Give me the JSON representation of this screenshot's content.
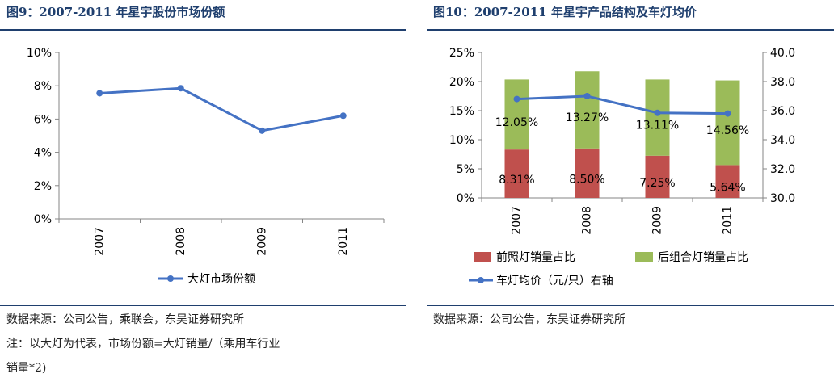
{
  "figures": [
    {
      "title": "图9：2007-2011 年星宇股份市场份额",
      "source": "数据来源：公司公告，乘联会，东吴证券研究所",
      "notes": [
        "注：以大灯为代表，市场份额=大灯销量/（乘用车行业",
        "销量*2)"
      ]
    },
    {
      "title": "图10：2007-2011 年星宇产品结构及车灯均价",
      "source": "数据来源：公司公告，东吴证券研究所",
      "notes": []
    }
  ],
  "colors": {
    "line": "#4472c4",
    "front": "#c0504d",
    "rear": "#9bbb59",
    "title": "#1f3f6e"
  },
  "chart_data": [
    {
      "type": "line",
      "categories": [
        "2007",
        "2008",
        "2009",
        "2011"
      ],
      "series": [
        {
          "name": "大灯市场份额",
          "values": [
            7.55,
            7.85,
            5.3,
            6.2
          ]
        }
      ],
      "ylim": [
        0,
        10
      ],
      "yticks": [
        "0%",
        "2%",
        "4%",
        "6%",
        "8%",
        "10%"
      ],
      "legend_position": "bottom",
      "grid": false
    },
    {
      "type": "bar",
      "stacked": true,
      "categories": [
        "2007",
        "2008",
        "2009",
        "2011"
      ],
      "series": [
        {
          "name": "前照灯销量占比",
          "values": [
            8.31,
            8.5,
            7.25,
            5.64
          ],
          "labels": [
            "8.31%",
            "8.50%",
            "7.25%",
            "5.64%"
          ]
        },
        {
          "name": "后组合灯销量占比",
          "values": [
            12.05,
            13.27,
            13.11,
            14.56
          ],
          "labels": [
            "12.05%",
            "13.27%",
            "13.11%",
            "14.56%"
          ]
        },
        {
          "name": "车灯均价（元/只）右轴",
          "type": "line",
          "axis": "right",
          "values": [
            36.8,
            37.0,
            35.85,
            35.8
          ]
        }
      ],
      "ylim": [
        0,
        25
      ],
      "yticks": [
        "0%",
        "5%",
        "10%",
        "15%",
        "20%",
        "25%"
      ],
      "y2lim": [
        30,
        40
      ],
      "y2ticks": [
        "30.0",
        "32.0",
        "34.0",
        "36.0",
        "38.0",
        "40.0"
      ],
      "legend_position": "bottom",
      "grid": false
    }
  ]
}
